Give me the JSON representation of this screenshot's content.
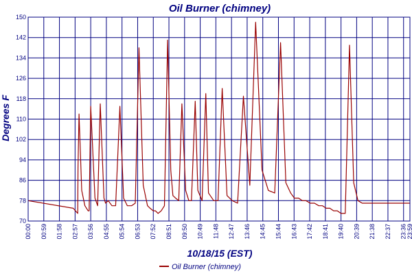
{
  "chart_data": {
    "type": "line",
    "title": "Oil Burner (chimney)",
    "xlabel": "10/18/15 (EST)",
    "ylabel": "Degrees F",
    "xlim": [
      0,
      1440
    ],
    "ylim": [
      70,
      150
    ],
    "grid": true,
    "legend_position": "bottom",
    "colors": {
      "title": "#000080",
      "axis": "#000080",
      "grid": "#000080",
      "series": "#990000"
    },
    "y_ticks": [
      70,
      78,
      86,
      94,
      102,
      110,
      118,
      126,
      134,
      142,
      150
    ],
    "x_ticks": [
      {
        "t": 0,
        "label": "00:00"
      },
      {
        "t": 59,
        "label": "00:59"
      },
      {
        "t": 118,
        "label": "01:58"
      },
      {
        "t": 177,
        "label": "02:57"
      },
      {
        "t": 236,
        "label": "03:56"
      },
      {
        "t": 295,
        "label": "04:55"
      },
      {
        "t": 354,
        "label": "05:54"
      },
      {
        "t": 413,
        "label": "06:53"
      },
      {
        "t": 472,
        "label": "07:52"
      },
      {
        "t": 531,
        "label": "08:51"
      },
      {
        "t": 590,
        "label": "09:50"
      },
      {
        "t": 649,
        "label": "10:49"
      },
      {
        "t": 708,
        "label": "11:48"
      },
      {
        "t": 767,
        "label": "12:47"
      },
      {
        "t": 826,
        "label": "13:46"
      },
      {
        "t": 885,
        "label": "14:45"
      },
      {
        "t": 944,
        "label": "15:44"
      },
      {
        "t": 1003,
        "label": "16:43"
      },
      {
        "t": 1062,
        "label": "17:42"
      },
      {
        "t": 1121,
        "label": "18:41"
      },
      {
        "t": 1180,
        "label": "19:40"
      },
      {
        "t": 1239,
        "label": "20:39"
      },
      {
        "t": 1298,
        "label": "21:38"
      },
      {
        "t": 1357,
        "label": "22:37"
      },
      {
        "t": 1416,
        "label": "23:36"
      },
      {
        "t": 1440,
        "label": "23:59"
      }
    ],
    "series": [
      {
        "name": "Oil Burner (chimney)",
        "x": [
          0,
          170,
          187,
          188,
          192,
          202,
          214,
          226,
          230,
          236,
          252,
          262,
          272,
          286,
          292,
          302,
          316,
          330,
          346,
          360,
          374,
          390,
          404,
          418,
          434,
          450,
          460,
          472,
          480,
          490,
          502,
          514,
          526,
          538,
          546,
          556,
          568,
          580,
          594,
          606,
          616,
          630,
          640,
          656,
          670,
          680,
          700,
          716,
          732,
          750,
          770,
          790,
          812,
          836,
          858,
          882,
          906,
          930,
          952,
          972,
          990,
          1004,
          1020,
          1034,
          1048,
          1064,
          1080,
          1096,
          1110,
          1124,
          1138,
          1152,
          1166,
          1180,
          1196,
          1212,
          1228,
          1244,
          1260,
          1280,
          1300,
          1320,
          1340,
          1360,
          1370,
          1380,
          1392,
          1404,
          1416,
          1426,
          1432,
          1440
        ],
        "y": [
          78,
          75,
          73,
          91,
          112,
          82,
          76,
          74,
          74,
          115,
          79,
          76,
          116,
          79,
          77,
          78,
          76,
          76,
          115,
          79,
          76,
          76,
          77,
          138,
          84,
          76,
          75,
          74,
          74,
          73,
          74,
          76,
          141,
          90,
          80,
          79,
          78,
          116,
          82,
          78,
          78,
          117,
          82,
          78,
          120,
          81,
          78,
          78,
          122,
          80,
          78,
          77,
          119,
          84,
          148,
          90,
          82,
          81,
          140,
          85,
          81,
          79,
          79,
          78,
          78,
          77,
          77,
          76,
          76,
          75,
          75,
          74,
          74,
          73,
          73,
          139,
          85,
          78,
          77,
          77,
          77,
          77,
          77,
          77,
          77,
          77,
          77,
          77,
          77,
          77,
          77,
          77
        ]
      }
    ]
  }
}
